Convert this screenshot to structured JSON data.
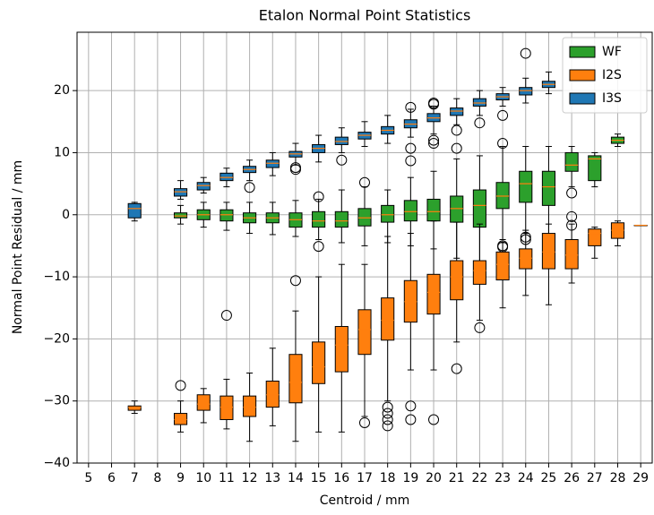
{
  "chart_data": {
    "type": "box",
    "title": "Etalon Normal Point Statistics",
    "x_label": "Centroid / mm",
    "y_label": "Normal Point Residual / mm",
    "categories": [
      "5",
      "6",
      "7",
      "8",
      "9",
      "10",
      "11",
      "12",
      "13",
      "14",
      "15",
      "16",
      "17",
      "18",
      "19",
      "20",
      "21",
      "22",
      "23",
      "24",
      "25",
      "26",
      "27",
      "28",
      "29"
    ],
    "ylim": [
      -40,
      29.4
    ],
    "yticks": [
      {
        "value": -40,
        "label": "−40"
      },
      {
        "value": -30,
        "label": "−30"
      },
      {
        "value": -20,
        "label": "−20"
      },
      {
        "value": -10,
        "label": "−10"
      },
      0,
      10,
      20
    ],
    "grid": true,
    "legend": "upper right",
    "median_color": "#ff7f0e",
    "series": [
      {
        "name": "WF",
        "color": "#2ca02c",
        "whislo": [
          null,
          null,
          null,
          null,
          -1.5,
          -2,
          -2.5,
          -3,
          -3.2,
          -3.5,
          -4,
          -4.5,
          -5,
          -4.5,
          -5,
          -5.5,
          -7,
          -8,
          -4,
          -3,
          -5,
          4.5,
          4.5,
          11,
          null
        ],
        "q1": [
          null,
          null,
          null,
          null,
          -0.5,
          -0.8,
          -1,
          -1.3,
          -1.3,
          -2,
          -2,
          -2,
          -1.8,
          -1.2,
          -1,
          -1,
          -1.2,
          -2,
          1,
          2,
          1.5,
          7,
          5.5,
          11.5,
          null
        ],
        "med": [
          null,
          null,
          null,
          null,
          -0.2,
          0,
          0,
          -0.5,
          -0.5,
          -0.8,
          -1,
          -1,
          -0.5,
          0,
          0.5,
          0.5,
          1,
          1.5,
          3,
          5,
          4.5,
          8,
          9,
          12,
          null
        ],
        "q3": [
          null,
          null,
          null,
          null,
          0.3,
          0.8,
          0.8,
          0.3,
          0.3,
          0.3,
          0.5,
          0.5,
          1,
          1.5,
          2.3,
          2.5,
          3,
          4,
          5.2,
          7,
          7,
          10,
          9.5,
          12.5,
          null
        ],
        "whishi": [
          null,
          null,
          null,
          null,
          1.5,
          2,
          2,
          2,
          2,
          2.3,
          2.5,
          4,
          4.5,
          4,
          6,
          7,
          9,
          9.5,
          11,
          11,
          11,
          11,
          10,
          13,
          null
        ],
        "fliers": [
          [],
          [],
          [],
          [],
          [],
          [],
          [],
          [],
          [],
          [],
          [
            2.9,
            -5.1
          ],
          [],
          [
            5.2
          ],
          [],
          [],
          [],
          [],
          [],
          [
            -5,
            -5.2
          ],
          [
            -3.6,
            -4
          ],
          [],
          [
            3.5,
            -0.3,
            -1.7
          ],
          [],
          [],
          []
        ]
      },
      {
        "name": "I2S",
        "color": "#ff7f0e",
        "whislo": [
          null,
          null,
          -32,
          null,
          -35,
          -33.5,
          -34.5,
          -36.5,
          -34,
          -36.5,
          -35,
          -35,
          -32.5,
          -30,
          -25,
          -25,
          -20.5,
          -17,
          -15,
          -13,
          -14.5,
          -11,
          -7,
          -5,
          -1.7
        ],
        "q1": [
          null,
          null,
          -31.5,
          null,
          -33.8,
          -31.5,
          -33,
          -32.5,
          -31,
          -30.3,
          -27.2,
          -25.3,
          -22.5,
          -20.2,
          -17.3,
          -16,
          -13.7,
          -11.2,
          -10.5,
          -8.7,
          -8.7,
          -8.7,
          -5,
          -3.8,
          -1.7
        ],
        "med": [
          null,
          null,
          -31,
          null,
          -33,
          -30.5,
          -31,
          -31,
          -29,
          -27,
          -24.5,
          -21,
          -18.5,
          -17,
          -14,
          -12.5,
          -10,
          -9,
          -8,
          -7,
          -6,
          -6.5,
          -3,
          -2.5,
          -1.7
        ],
        "q3": [
          null,
          null,
          -30.8,
          null,
          -32,
          -29,
          -29.2,
          -29.2,
          -26.8,
          -22.5,
          -20.5,
          -18,
          -15.3,
          -13.4,
          -10.6,
          -9.6,
          -7.4,
          -7.4,
          -6,
          -5.5,
          -3,
          -4,
          -2.3,
          -1.3,
          -1.7
        ],
        "whishi": [
          null,
          null,
          -30,
          null,
          -30,
          -28,
          -26.5,
          -25.5,
          -21.5,
          -15.5,
          -10,
          -8,
          -8,
          -3.5,
          -3,
          -1,
          -1.2,
          -1.5,
          -4.5,
          -2.5,
          -1.5,
          -1.5,
          -2,
          -1,
          -1.7
        ],
        "fliers": [
          [],
          [],
          [],
          [],
          [
            -27.5
          ],
          [],
          [
            -16.2
          ],
          [],
          [],
          [
            -10.6
          ],
          [],
          [],
          [
            -33.5
          ],
          [
            -31,
            -32,
            -33,
            -34
          ],
          [
            -30.8,
            -33
          ],
          [
            -33
          ],
          [
            -24.8
          ],
          [
            -18.2
          ],
          [],
          [],
          [],
          [],
          [],
          [],
          []
        ]
      },
      {
        "name": "I3S",
        "color": "#1f77b4",
        "whislo": [
          null,
          null,
          -1,
          null,
          2.5,
          3.5,
          4.5,
          5.5,
          6.3,
          8,
          8.5,
          10,
          11,
          11.5,
          12.5,
          13,
          14.5,
          16,
          17.5,
          18,
          19.5,
          null,
          null,
          null,
          null
        ],
        "q1": [
          null,
          null,
          -0.5,
          null,
          3,
          4,
          5.5,
          6.8,
          7.6,
          9.3,
          10,
          11.3,
          12.2,
          13,
          14,
          15,
          16,
          17.5,
          18.5,
          19.3,
          20.5,
          null,
          null,
          null,
          null
        ],
        "med": [
          null,
          null,
          1,
          null,
          3.7,
          4.7,
          6,
          7.3,
          8.3,
          9.8,
          10.7,
          11.8,
          12.8,
          13.6,
          14.6,
          15.6,
          16.7,
          18,
          19,
          20,
          21,
          null,
          null,
          null,
          null
        ],
        "q3": [
          null,
          null,
          1.8,
          null,
          4.2,
          5.2,
          6.7,
          7.8,
          8.8,
          10.2,
          11.3,
          12.5,
          13.3,
          14.2,
          15.3,
          16.3,
          17.2,
          18.7,
          19.5,
          20.5,
          21.5,
          null,
          null,
          null,
          null
        ],
        "whishi": [
          null,
          null,
          2,
          null,
          5.5,
          6,
          7.5,
          8.8,
          10,
          11.5,
          12.8,
          14,
          15,
          16,
          17,
          17.5,
          18.7,
          20,
          20.5,
          22,
          23,
          null,
          null,
          null,
          null
        ],
        "fliers": [
          [],
          [],
          [],
          [],
          [],
          [],
          [],
          [
            4.4
          ],
          [],
          [
            7.3,
            7.6
          ],
          [],
          [
            8.8
          ],
          [],
          [],
          [
            17.3,
            10.7,
            8.7
          ],
          [
            18,
            17.8,
            11.5,
            12
          ],
          [
            13.6,
            10.7
          ],
          [
            14.8
          ],
          [
            16,
            11.5
          ],
          [
            26
          ],
          [],
          [],
          [],
          [],
          []
        ]
      }
    ]
  }
}
